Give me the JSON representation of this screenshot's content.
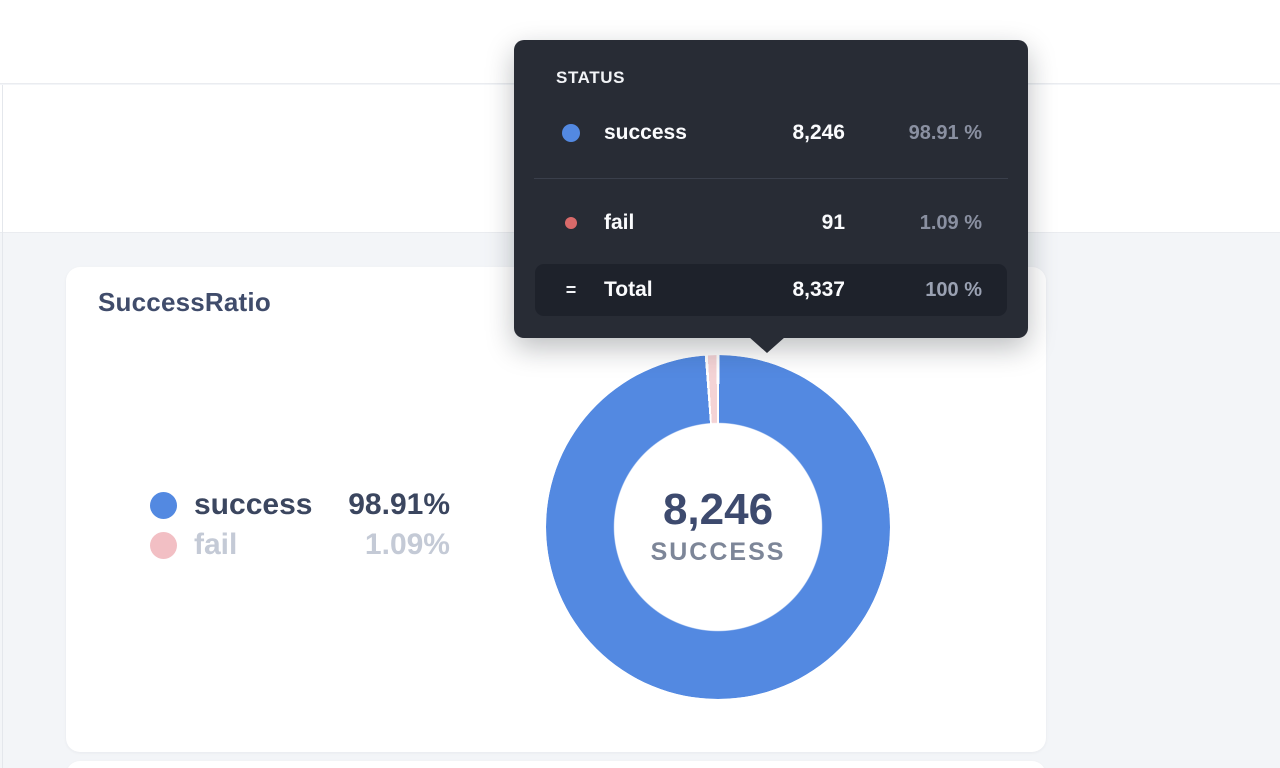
{
  "page": {
    "background": "#F3F5F8",
    "surface": "#FFFFFF",
    "border": "#EAECF0"
  },
  "card": {
    "title": "SuccessRatio"
  },
  "legend": {
    "items": [
      {
        "label": "success",
        "pct": "98.91%",
        "state": "active"
      },
      {
        "label": "fail",
        "pct": "1.09%",
        "state": "dimmed"
      }
    ]
  },
  "donut_center": {
    "value": "8,246",
    "label": "SUCCESS"
  },
  "tooltip": {
    "header": "STATUS",
    "rows": [
      {
        "label": "success",
        "value": "8,246",
        "pct": "98.91 %"
      },
      {
        "label": "fail",
        "value": "91",
        "pct": "1.09 %"
      }
    ],
    "total": {
      "marker": "=",
      "label": "Total",
      "value": "8,337",
      "pct": "100 %"
    }
  },
  "chart_data": {
    "type": "pie",
    "title": "SuccessRatio",
    "series_name": "STATUS",
    "categories": [
      "success",
      "fail"
    ],
    "values": [
      8246,
      91
    ],
    "percentages": [
      98.91,
      1.09
    ],
    "total": 8337,
    "donut": true,
    "start_angle": "top",
    "direction": "clockwise",
    "center_value": "8,246",
    "center_label": "SUCCESS",
    "legend_position": "left",
    "colors": {
      "success": "#5389E1",
      "fail": "#D96A6A",
      "fail_dimmed": "#F4D3D5",
      "legend_fail_dot": "#F2BFC4",
      "slice_border": "#FFFFFF"
    }
  }
}
